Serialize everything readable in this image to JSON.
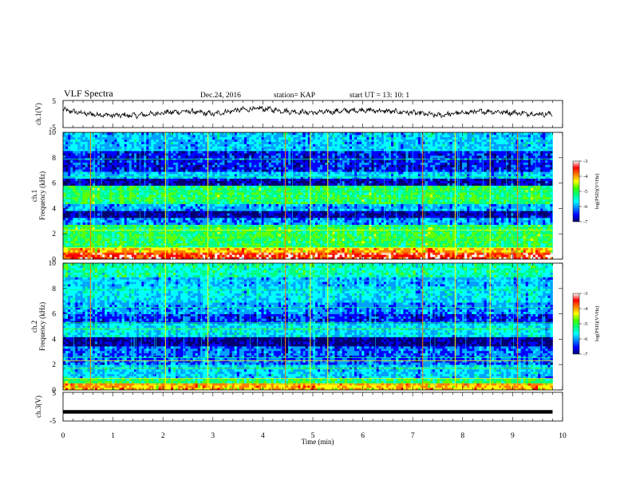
{
  "header": {
    "title": "VLF Spectra",
    "date": "Dec.24, 2016",
    "station": "station= KAP",
    "start": "start  UT =   13: 10: 1"
  },
  "colors": {
    "scale": [
      "#000070",
      "#0000ff",
      "#00a0ff",
      "#00ffff",
      "#00ff80",
      "#60ff00",
      "#ffff00",
      "#ff8000",
      "#ff0000",
      "#ffffff"
    ],
    "trace": "#000000"
  },
  "chart_data": [
    {
      "type": "line",
      "panel": "ch1",
      "ylabel": "ch.1(V)",
      "ylim": [
        -5,
        5
      ],
      "y_ticks": [
        "5",
        "-5"
      ],
      "xlim": [
        0,
        10
      ],
      "series": [
        {
          "x": [
            0,
            0.5,
            1,
            1.5,
            2,
            2.5,
            3,
            3.5,
            4,
            4.5,
            5,
            5.5,
            6,
            6.5,
            7,
            7.5,
            8,
            8.5,
            9,
            9.5,
            9.8
          ],
          "values": [
            1.5,
            0,
            -0.5,
            -0.5,
            0.5,
            1,
            0,
            1.5,
            2,
            1,
            0.5,
            1,
            1.5,
            1,
            0.5,
            -0.5,
            0.5,
            1,
            0.5,
            0,
            0
          ]
        }
      ]
    },
    {
      "type": "heatmap",
      "panel": "ch1-spectrogram",
      "ylabel": "Frequency (kHz)",
      "channel_label": "ch.1",
      "ylim": [
        0,
        10
      ],
      "xlim": [
        0,
        9.8
      ],
      "y_ticks": [
        "0",
        "2",
        "4",
        "6",
        "8",
        "10"
      ],
      "colorbar": {
        "label": "log(PSD)(V²/Hz)",
        "range": [
          -7,
          -3
        ],
        "ticks": [
          "-3",
          "-4",
          "-5",
          "-6",
          "-7"
        ]
      }
    },
    {
      "type": "heatmap",
      "panel": "ch2-spectrogram",
      "ylabel": "Frequency (kHz)",
      "channel_label": "ch.2",
      "ylim": [
        0,
        10
      ],
      "xlim": [
        0,
        9.8
      ],
      "y_ticks": [
        "0",
        "2",
        "4",
        "6",
        "8",
        "10"
      ],
      "colorbar": {
        "label": "log(PSD)(V²/Hz)",
        "range": [
          -7,
          -3
        ],
        "ticks": [
          "-3",
          "-4",
          "-5",
          "-6",
          "-7"
        ]
      }
    },
    {
      "type": "line",
      "panel": "ch3",
      "ylabel": "ch.3(V)",
      "ylim": [
        -5,
        5
      ],
      "y_ticks": [
        "5",
        "-5"
      ],
      "xlim": [
        0,
        10
      ],
      "series": [
        {
          "x": [
            0,
            9.8
          ],
          "values": [
            -1.8,
            -1.8
          ]
        }
      ]
    }
  ],
  "xaxis": {
    "label": "Time (min)",
    "ticks": [
      "0",
      "1",
      "2",
      "3",
      "4",
      "5",
      "6",
      "7",
      "8",
      "9",
      "10"
    ],
    "range": [
      0,
      10
    ]
  }
}
